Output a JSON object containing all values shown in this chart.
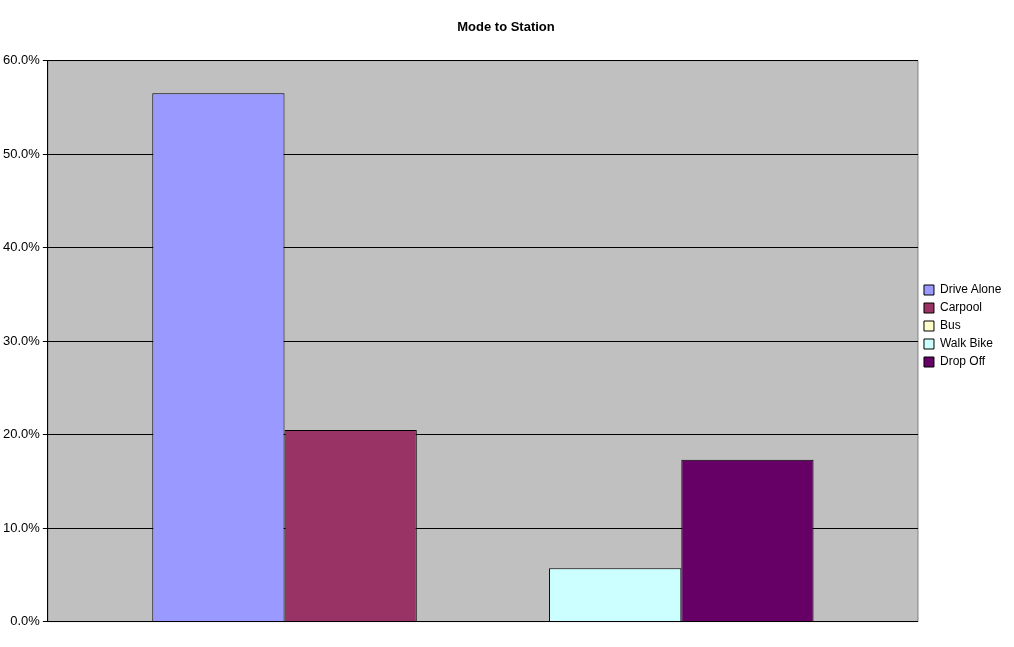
{
  "chart_data": {
    "type": "bar",
    "title": "Mode to Station",
    "categories": [
      null
    ],
    "series": [
      {
        "name": "Drive Alone",
        "color": "#9999ff",
        "values": [
          56.5
        ]
      },
      {
        "name": "Carpool",
        "color": "#993366",
        "values": [
          20.5
        ]
      },
      {
        "name": "Bus",
        "color": "#ffffcc",
        "values": [
          0
        ]
      },
      {
        "name": "Walk Bike",
        "color": "#ccffff",
        "values": [
          5.7
        ]
      },
      {
        "name": "Drop Off",
        "color": "#660066",
        "values": [
          17.3
        ]
      }
    ],
    "ylim": [
      0,
      60
    ],
    "yticks": [
      {
        "value": 0,
        "label": "0.0%"
      },
      {
        "value": 10,
        "label": "10.0%"
      },
      {
        "value": 20,
        "label": "20.0%"
      },
      {
        "value": 30,
        "label": "30.0%"
      },
      {
        "value": 40,
        "label": "40.0%"
      },
      {
        "value": 50,
        "label": "50.0%"
      },
      {
        "value": 60,
        "label": "60.0%"
      }
    ],
    "grid": "y",
    "legend": "right"
  }
}
